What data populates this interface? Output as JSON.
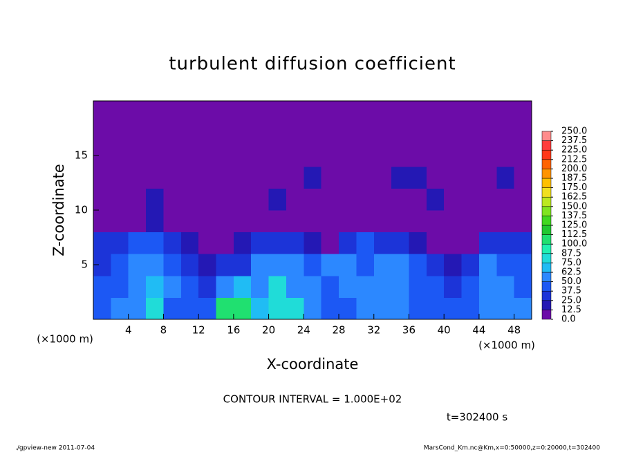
{
  "chart_data": {
    "type": "heatmap",
    "title": "turbulent diffusion coefficient",
    "x_label": "X-coordinate",
    "y_label": "Z-coordinate",
    "x_unit": "(×1000 m)",
    "y_unit": "(×1000 m)",
    "contour_interval": "CONTOUR INTERVAL = 1.000E+02",
    "time": "t=302400 s",
    "footer_left": "./gpview-new  2011-07-04",
    "footer_right": "MarsCond_Km.nc@Km,x=0:50000,z=0:20000,t=302400",
    "xlim": [
      0,
      50
    ],
    "ylim": [
      0,
      20
    ],
    "xticks": [
      4,
      8,
      12,
      16,
      20,
      24,
      28,
      32,
      36,
      40,
      44,
      48
    ],
    "yticks": [
      5,
      10,
      15
    ],
    "x": [
      1,
      3,
      5,
      7,
      9,
      11,
      13,
      15,
      17,
      19,
      21,
      23,
      25,
      27,
      29,
      31,
      33,
      35,
      37,
      39,
      41,
      43,
      45,
      47,
      49
    ],
    "y": [
      1,
      3,
      5,
      7,
      9,
      11,
      13,
      15,
      17,
      19
    ],
    "z": [
      [
        45,
        50,
        55,
        75,
        45,
        40,
        45,
        100,
        105,
        70,
        80,
        75,
        55,
        45,
        40,
        50,
        55,
        50,
        45,
        45,
        40,
        40,
        55,
        60,
        50
      ],
      [
        40,
        45,
        60,
        65,
        50,
        45,
        35,
        60,
        70,
        60,
        75,
        55,
        50,
        45,
        50,
        55,
        60,
        55,
        45,
        40,
        35,
        45,
        60,
        55,
        45
      ],
      [
        35,
        40,
        50,
        60,
        45,
        30,
        20,
        25,
        35,
        55,
        60,
        50,
        45,
        55,
        50,
        45,
        55,
        50,
        40,
        30,
        20,
        35,
        50,
        45,
        40
      ],
      [
        25,
        35,
        40,
        45,
        35,
        20,
        5,
        5,
        15,
        30,
        35,
        25,
        20,
        10,
        30,
        40,
        35,
        30,
        20,
        10,
        5,
        10,
        25,
        35,
        30
      ],
      [
        0,
        5,
        10,
        20,
        5,
        0,
        0,
        0,
        0,
        0,
        0,
        0,
        0,
        0,
        0,
        5,
        10,
        5,
        0,
        0,
        0,
        0,
        0,
        5,
        10
      ],
      [
        0,
        0,
        5,
        15,
        0,
        0,
        5,
        10,
        5,
        10,
        15,
        10,
        5,
        5,
        0,
        0,
        5,
        10,
        10,
        15,
        10,
        5,
        5,
        10,
        0
      ],
      [
        0,
        0,
        0,
        5,
        5,
        5,
        10,
        5,
        5,
        5,
        5,
        5,
        15,
        10,
        5,
        5,
        10,
        20,
        15,
        10,
        5,
        5,
        5,
        15,
        10
      ],
      [
        0,
        5,
        5,
        0,
        0,
        0,
        0,
        0,
        0,
        0,
        0,
        0,
        0,
        0,
        0,
        0,
        0,
        0,
        0,
        0,
        0,
        0,
        0,
        5,
        0
      ],
      [
        0,
        5,
        5,
        0,
        0,
        0,
        0,
        0,
        0,
        0,
        0,
        0,
        0,
        0,
        0,
        0,
        0,
        0,
        0,
        0,
        0,
        0,
        0,
        0,
        0
      ],
      [
        0,
        0,
        0,
        0,
        0,
        0,
        0,
        0,
        0,
        0,
        0,
        0,
        0,
        0,
        0,
        0,
        0,
        0,
        0,
        0,
        0,
        0,
        0,
        0,
        0
      ]
    ],
    "levels": [
      {
        "value": 0,
        "label": "0.0"
      },
      {
        "value": 12.5,
        "label": "12.5"
      },
      {
        "value": 25,
        "label": "25.0"
      },
      {
        "value": 37.5,
        "label": "37.5"
      },
      {
        "value": 50,
        "label": "50.0"
      },
      {
        "value": 62.5,
        "label": "62.5"
      },
      {
        "value": 75,
        "label": "75.0"
      },
      {
        "value": 87.5,
        "label": "87.5"
      },
      {
        "value": 100,
        "label": "100.0"
      },
      {
        "value": 112.5,
        "label": "112.5"
      },
      {
        "value": 125,
        "label": "125.0"
      },
      {
        "value": 137.5,
        "label": "137.5"
      },
      {
        "value": 150,
        "label": "150.0"
      },
      {
        "value": 162.5,
        "label": "162.5"
      },
      {
        "value": 175,
        "label": "175.0"
      },
      {
        "value": 187.5,
        "label": "187.5"
      },
      {
        "value": 200,
        "label": "200.0"
      },
      {
        "value": 212.5,
        "label": "212.5"
      },
      {
        "value": 225,
        "label": "225.0"
      },
      {
        "value": 237.5,
        "label": "237.5"
      },
      {
        "value": 250,
        "label": "250.0"
      }
    ],
    "colors": [
      "#6c0ca8",
      "#2418b4",
      "#1c34d8",
      "#1c58f4",
      "#2c88ff",
      "#20bcf4",
      "#20dcd8",
      "#20f0b0",
      "#20e070",
      "#20c830",
      "#40d820",
      "#80e420",
      "#bce820",
      "#f0e020",
      "#ffc000",
      "#ff9400",
      "#ff6400",
      "#ff3818",
      "#ff3c3c",
      "#ff8c8c"
    ]
  }
}
